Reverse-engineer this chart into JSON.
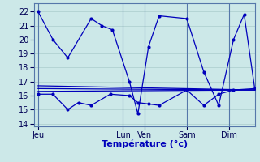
{
  "bg_color": "#cce8e8",
  "line_color": "#0000bb",
  "xlabel": "Température (°c)",
  "ylim": [
    13.8,
    22.6
  ],
  "yticks": [
    14,
    15,
    16,
    17,
    18,
    19,
    20,
    21,
    22
  ],
  "xlim": [
    -0.2,
    10.2
  ],
  "day_labels": [
    "Jeu",
    "Lun",
    "Ven",
    "Sam",
    "Dim"
  ],
  "day_positions": [
    0,
    4,
    5,
    7,
    9
  ],
  "line1_x": [
    0,
    0.7,
    1.4,
    2.5,
    3.0,
    3.5,
    4.3,
    4.7,
    5.2,
    5.7,
    7.0,
    7.8,
    8.5,
    9.2,
    9.7,
    10.2
  ],
  "line1_y": [
    22.0,
    20.0,
    18.7,
    21.5,
    21.0,
    20.7,
    17.0,
    14.7,
    19.5,
    21.7,
    21.5,
    17.7,
    15.3,
    20.0,
    21.8,
    16.5
  ],
  "line2_x": [
    0,
    0.7,
    1.4,
    1.9,
    2.5,
    3.4,
    4.3,
    4.7,
    5.2,
    5.7,
    7.0,
    7.8,
    8.5,
    9.2,
    10.2
  ],
  "line2_y": [
    16.1,
    16.1,
    15.0,
    15.5,
    15.3,
    16.1,
    16.0,
    15.5,
    15.4,
    15.3,
    16.4,
    15.3,
    16.1,
    16.4,
    16.5
  ],
  "flat_lines": [
    {
      "x": [
        0,
        10.2
      ],
      "y": [
        16.7,
        16.4
      ]
    },
    {
      "x": [
        0,
        10.2
      ],
      "y": [
        16.5,
        16.4
      ]
    },
    {
      "x": [
        0,
        10.2
      ],
      "y": [
        16.3,
        16.4
      ]
    }
  ],
  "vline_positions": [
    0,
    4,
    5,
    7,
    9
  ],
  "tick_fontsize": 7,
  "xlabel_fontsize": 8,
  "xlabel_color": "#0000bb"
}
